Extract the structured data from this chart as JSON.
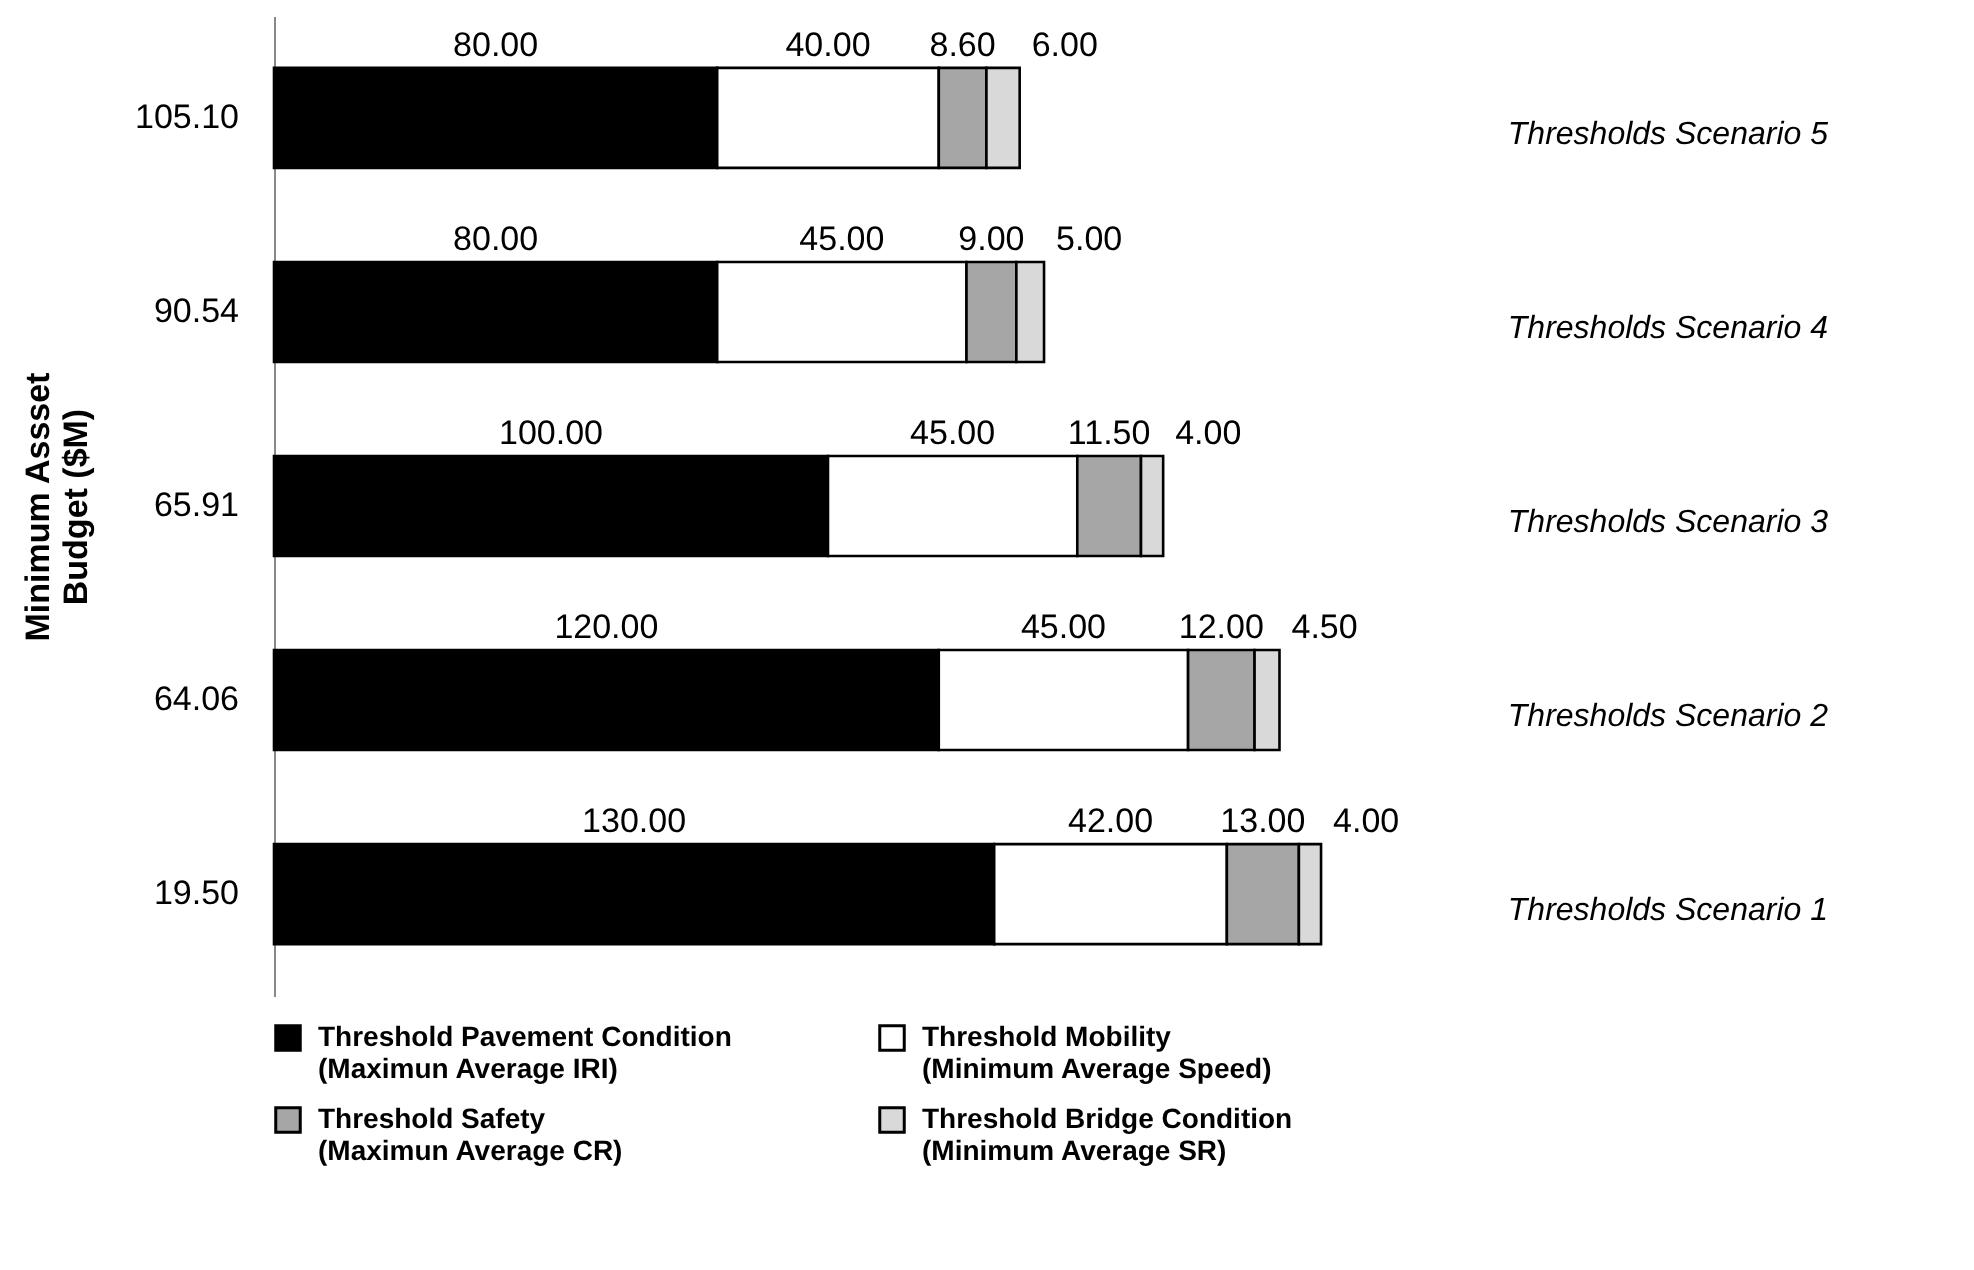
{
  "chart_data": {
    "type": "bar",
    "orientation": "horizontal",
    "stacked": true,
    "ylabel": "Minimum Assset Budget ($M)",
    "categories": [
      "105.10",
      "90.54",
      "65.91",
      "64.06",
      "19.50"
    ],
    "series": [
      {
        "name": "Threshold Pavement Condition (Maximun Average IRI)",
        "color": "#000000",
        "values": [
          80,
          80,
          100,
          120,
          130
        ],
        "value_labels": [
          "80.00",
          "80.00",
          "100.00",
          "120.00",
          "130.00"
        ]
      },
      {
        "name": "Threshold Mobility (Minimum Average Speed)",
        "color": "#ffffff",
        "values": [
          40,
          45,
          45,
          45,
          42
        ],
        "value_labels": [
          "40.00",
          "45.00",
          "45.00",
          "45.00",
          "42.00"
        ]
      },
      {
        "name": "Threshold Safety (Maximun Average CR)",
        "color": "#a6a6a6",
        "values": [
          8.6,
          9,
          11.5,
          12,
          13
        ],
        "value_labels": [
          "8.60",
          "9.00",
          "11.50",
          "12.00",
          "13.00"
        ]
      },
      {
        "name": "Threshold Bridge Condition (Minimum  Average SR)",
        "color": "#d9d9d9",
        "values": [
          6,
          5,
          4,
          4.5,
          4
        ],
        "value_labels": [
          "6.00",
          "5.00",
          "4.00",
          "4.50",
          "4.00"
        ]
      }
    ],
    "annotations": [
      "Thresholds Scenario 5",
      "Thresholds Scenario 4",
      "Thresholds Scenario 3",
      "Thresholds Scenario 2",
      "Thresholds Scenario 1"
    ],
    "legend": "bottom"
  }
}
